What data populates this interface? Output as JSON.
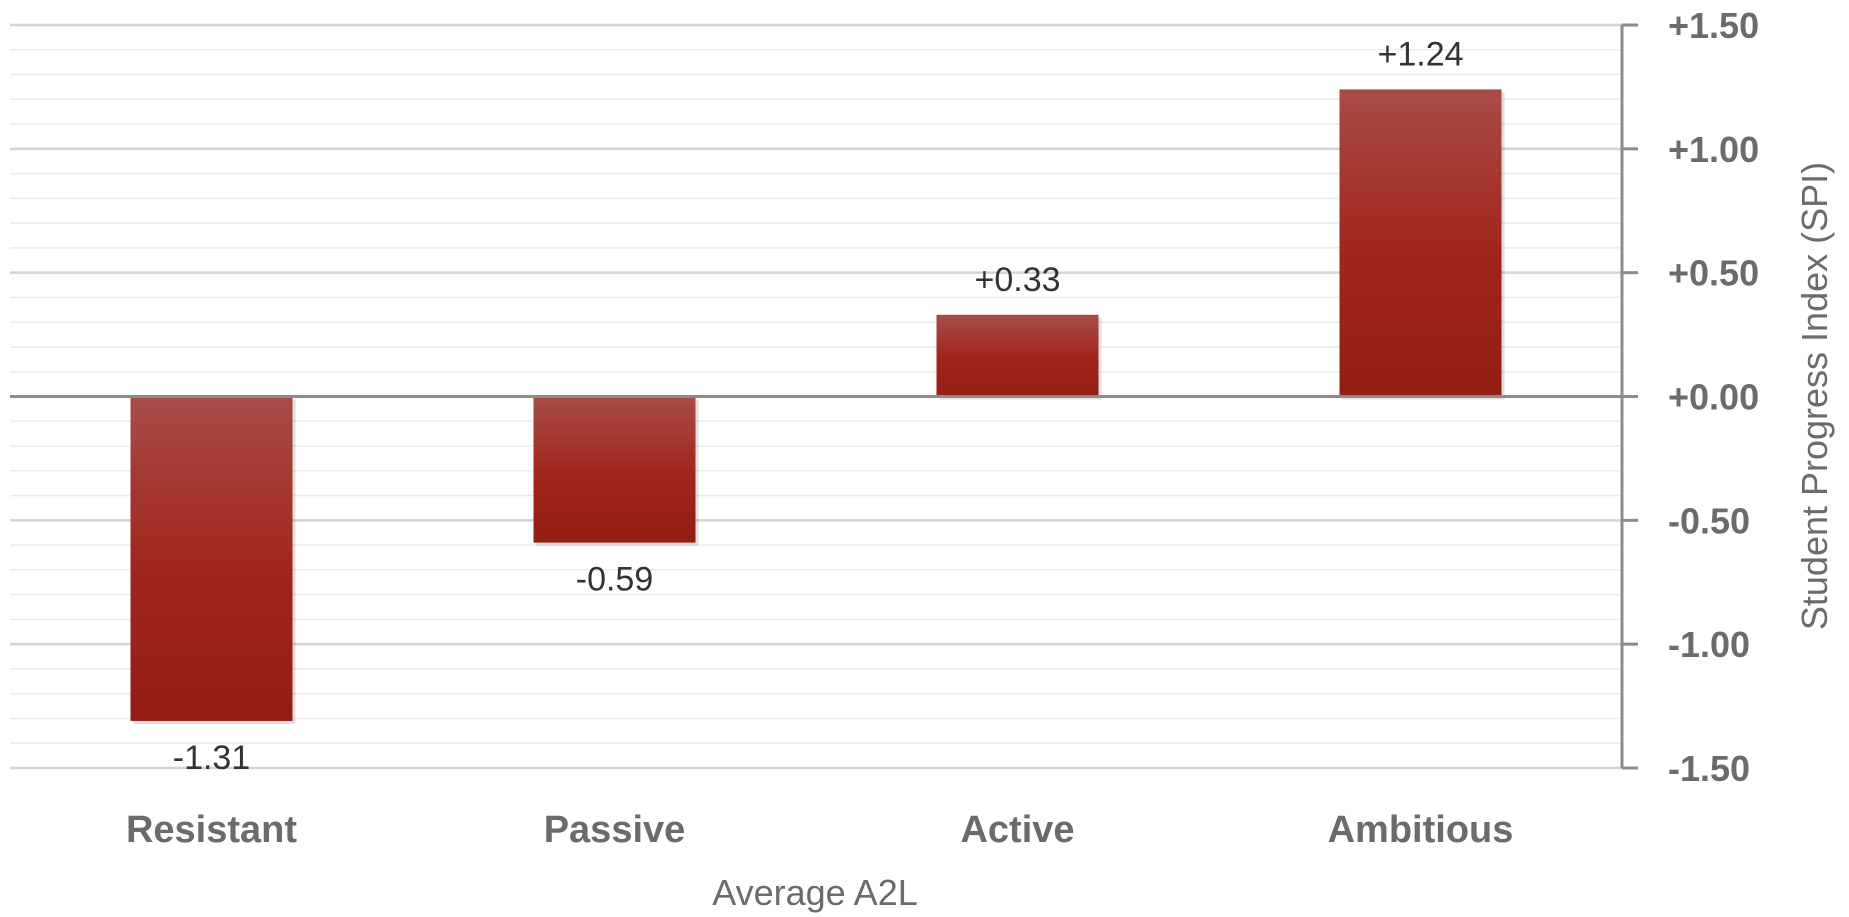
{
  "chart_data": {
    "type": "bar",
    "categories": [
      "Resistant",
      "Passive",
      "Active",
      "Ambitious"
    ],
    "values": [
      -1.31,
      -0.59,
      0.33,
      1.24
    ],
    "data_labels": [
      "-1.31",
      "-0.59",
      "+0.33",
      "+1.24"
    ],
    "xlabel": "Average A2L",
    "ylabel": "Student Progress Index (SPI)",
    "ylim": [
      -1.5,
      1.5
    ],
    "y_ticks": [
      1.5,
      1.0,
      0.5,
      0.0,
      -0.5,
      -1.0,
      -1.5
    ],
    "y_tick_labels": [
      "+1.50",
      "+1.00",
      "+0.50",
      "+0.00",
      "-0.50",
      "-1.00",
      "-1.50"
    ],
    "y_axis_position": "right",
    "grid": true,
    "minor_grid_step": 0.1,
    "colors": {
      "bar_top": "#a84c48",
      "bar_mid": "#a0241a",
      "bar_bottom": "#941e12"
    }
  }
}
